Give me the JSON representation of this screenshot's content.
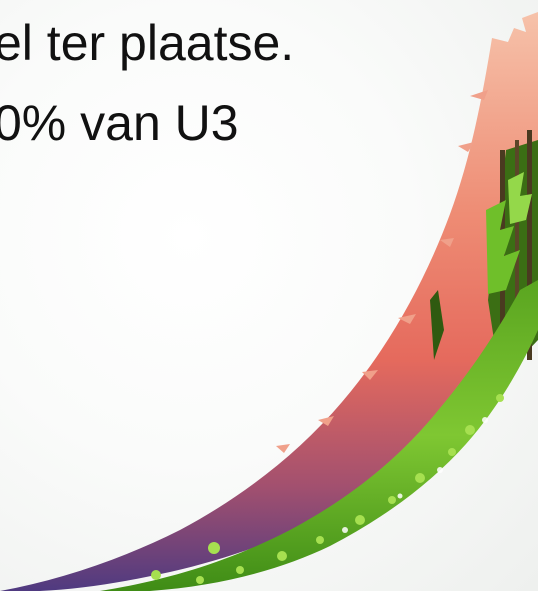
{
  "slide": {
    "lines": [
      "el ter plaatse.",
      "0% van U3"
    ]
  },
  "decoration": {
    "image": "sunset-forest-swoosh",
    "colors": {
      "sky_top": "#f6b9a0",
      "sky_mid": "#e56e5e",
      "sky_bottom": "#5b3a7e",
      "foliage_dark": "#2f6a12",
      "foliage_light": "#8fd23c",
      "background": "#f7f8f6",
      "text": "#111111"
    }
  }
}
